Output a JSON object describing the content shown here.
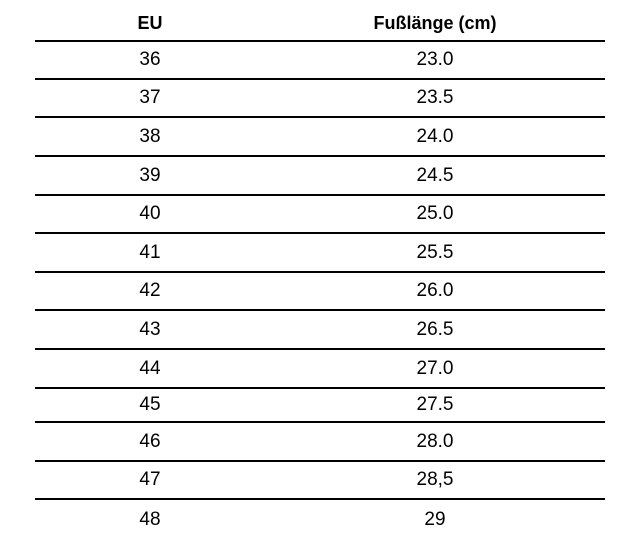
{
  "table": {
    "headers": [
      "EU",
      "Fußlänge (cm)"
    ],
    "rows": [
      [
        "36",
        "23.0"
      ],
      [
        "37",
        "23.5"
      ],
      [
        "38",
        "24.0"
      ],
      [
        "39",
        "24.5"
      ],
      [
        "40",
        "25.0"
      ],
      [
        "41",
        "25.5"
      ],
      [
        "42",
        "26.0"
      ],
      [
        "43",
        "26.5"
      ],
      [
        "44",
        "27.0"
      ],
      [
        "45",
        "27.5"
      ],
      [
        "46",
        "28.0"
      ],
      [
        "47",
        "28,5"
      ],
      [
        "48",
        "29"
      ]
    ]
  }
}
